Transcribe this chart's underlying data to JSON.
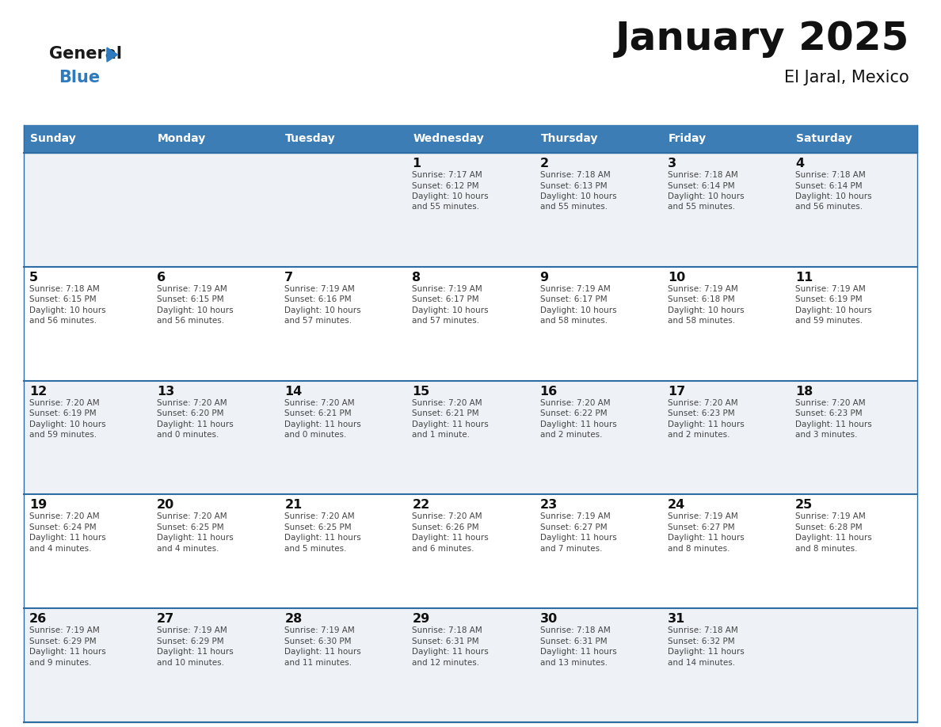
{
  "title": "January 2025",
  "subtitle": "El Jaral, Mexico",
  "days_of_week": [
    "Sunday",
    "Monday",
    "Tuesday",
    "Wednesday",
    "Thursday",
    "Friday",
    "Saturday"
  ],
  "header_bg": "#3d7db5",
  "header_text": "#ffffff",
  "cell_bg_odd": "#eef2f7",
  "cell_bg_even": "#ffffff",
  "row_line_color": "#2e6da4",
  "text_color": "#444444",
  "day_num_color": "#111111",
  "logo_color1": "#1a1a1a",
  "logo_color2": "#2e7abf",
  "logo_triangle_color": "#2e7abf",
  "calendar_data": [
    [
      null,
      null,
      null,
      {
        "day": 1,
        "sunrise": "7:17 AM",
        "sunset": "6:12 PM",
        "daylight": "10 hours and 55 minutes."
      },
      {
        "day": 2,
        "sunrise": "7:18 AM",
        "sunset": "6:13 PM",
        "daylight": "10 hours and 55 minutes."
      },
      {
        "day": 3,
        "sunrise": "7:18 AM",
        "sunset": "6:14 PM",
        "daylight": "10 hours and 55 minutes."
      },
      {
        "day": 4,
        "sunrise": "7:18 AM",
        "sunset": "6:14 PM",
        "daylight": "10 hours and 56 minutes."
      }
    ],
    [
      {
        "day": 5,
        "sunrise": "7:18 AM",
        "sunset": "6:15 PM",
        "daylight": "10 hours and 56 minutes."
      },
      {
        "day": 6,
        "sunrise": "7:19 AM",
        "sunset": "6:15 PM",
        "daylight": "10 hours and 56 minutes."
      },
      {
        "day": 7,
        "sunrise": "7:19 AM",
        "sunset": "6:16 PM",
        "daylight": "10 hours and 57 minutes."
      },
      {
        "day": 8,
        "sunrise": "7:19 AM",
        "sunset": "6:17 PM",
        "daylight": "10 hours and 57 minutes."
      },
      {
        "day": 9,
        "sunrise": "7:19 AM",
        "sunset": "6:17 PM",
        "daylight": "10 hours and 58 minutes."
      },
      {
        "day": 10,
        "sunrise": "7:19 AM",
        "sunset": "6:18 PM",
        "daylight": "10 hours and 58 minutes."
      },
      {
        "day": 11,
        "sunrise": "7:19 AM",
        "sunset": "6:19 PM",
        "daylight": "10 hours and 59 minutes."
      }
    ],
    [
      {
        "day": 12,
        "sunrise": "7:20 AM",
        "sunset": "6:19 PM",
        "daylight": "10 hours and 59 minutes."
      },
      {
        "day": 13,
        "sunrise": "7:20 AM",
        "sunset": "6:20 PM",
        "daylight": "11 hours and 0 minutes."
      },
      {
        "day": 14,
        "sunrise": "7:20 AM",
        "sunset": "6:21 PM",
        "daylight": "11 hours and 0 minutes."
      },
      {
        "day": 15,
        "sunrise": "7:20 AM",
        "sunset": "6:21 PM",
        "daylight": "11 hours and 1 minute."
      },
      {
        "day": 16,
        "sunrise": "7:20 AM",
        "sunset": "6:22 PM",
        "daylight": "11 hours and 2 minutes."
      },
      {
        "day": 17,
        "sunrise": "7:20 AM",
        "sunset": "6:23 PM",
        "daylight": "11 hours and 2 minutes."
      },
      {
        "day": 18,
        "sunrise": "7:20 AM",
        "sunset": "6:23 PM",
        "daylight": "11 hours and 3 minutes."
      }
    ],
    [
      {
        "day": 19,
        "sunrise": "7:20 AM",
        "sunset": "6:24 PM",
        "daylight": "11 hours and 4 minutes."
      },
      {
        "day": 20,
        "sunrise": "7:20 AM",
        "sunset": "6:25 PM",
        "daylight": "11 hours and 4 minutes."
      },
      {
        "day": 21,
        "sunrise": "7:20 AM",
        "sunset": "6:25 PM",
        "daylight": "11 hours and 5 minutes."
      },
      {
        "day": 22,
        "sunrise": "7:20 AM",
        "sunset": "6:26 PM",
        "daylight": "11 hours and 6 minutes."
      },
      {
        "day": 23,
        "sunrise": "7:19 AM",
        "sunset": "6:27 PM",
        "daylight": "11 hours and 7 minutes."
      },
      {
        "day": 24,
        "sunrise": "7:19 AM",
        "sunset": "6:27 PM",
        "daylight": "11 hours and 8 minutes."
      },
      {
        "day": 25,
        "sunrise": "7:19 AM",
        "sunset": "6:28 PM",
        "daylight": "11 hours and 8 minutes."
      }
    ],
    [
      {
        "day": 26,
        "sunrise": "7:19 AM",
        "sunset": "6:29 PM",
        "daylight": "11 hours and 9 minutes."
      },
      {
        "day": 27,
        "sunrise": "7:19 AM",
        "sunset": "6:29 PM",
        "daylight": "11 hours and 10 minutes."
      },
      {
        "day": 28,
        "sunrise": "7:19 AM",
        "sunset": "6:30 PM",
        "daylight": "11 hours and 11 minutes."
      },
      {
        "day": 29,
        "sunrise": "7:18 AM",
        "sunset": "6:31 PM",
        "daylight": "11 hours and 12 minutes."
      },
      {
        "day": 30,
        "sunrise": "7:18 AM",
        "sunset": "6:31 PM",
        "daylight": "11 hours and 13 minutes."
      },
      {
        "day": 31,
        "sunrise": "7:18 AM",
        "sunset": "6:32 PM",
        "daylight": "11 hours and 14 minutes."
      },
      null
    ]
  ]
}
